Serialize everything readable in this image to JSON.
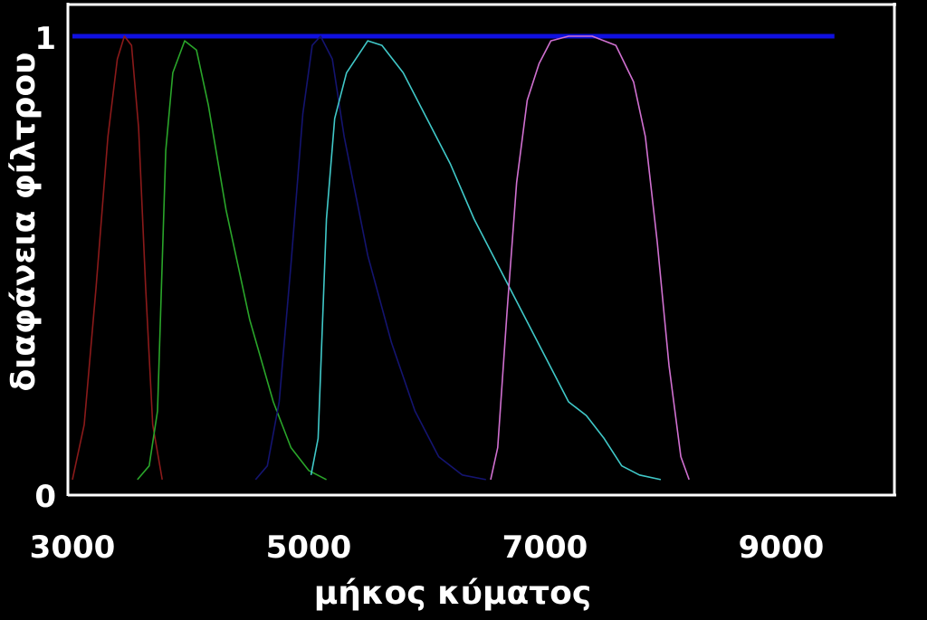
{
  "chart_data": {
    "type": "line",
    "title": "",
    "xlabel": "μήκος κύματος",
    "ylabel": "διαφάνεια φίλτρου",
    "xlim": [
      3000,
      9500
    ],
    "ylim": [
      0,
      1
    ],
    "x_ticks": [
      {
        "value": 3000,
        "label": "3000"
      },
      {
        "value": 5000,
        "label": "5000"
      },
      {
        "value": 7000,
        "label": "7000"
      },
      {
        "value": 9000,
        "label": "9000"
      }
    ],
    "y_ticks": [
      {
        "value": 0,
        "label": "0"
      },
      {
        "value": 1,
        "label": "1"
      }
    ],
    "grid": false,
    "legend": "none",
    "reference_line": {
      "y": 1.0,
      "x_range": [
        3000,
        9450
      ],
      "color": "#1010e0"
    },
    "series": [
      {
        "color": "#8b1a1a",
        "points": [
          [
            3000,
            0.03
          ],
          [
            3100,
            0.15
          ],
          [
            3200,
            0.45
          ],
          [
            3300,
            0.78
          ],
          [
            3380,
            0.95
          ],
          [
            3440,
            1.0
          ],
          [
            3500,
            0.98
          ],
          [
            3560,
            0.8
          ],
          [
            3620,
            0.45
          ],
          [
            3680,
            0.15
          ],
          [
            3760,
            0.03
          ]
        ]
      },
      {
        "color": "#2aa52a",
        "points": [
          [
            3550,
            0.03
          ],
          [
            3650,
            0.06
          ],
          [
            3720,
            0.18
          ],
          [
            3790,
            0.75
          ],
          [
            3850,
            0.92
          ],
          [
            3950,
            0.99
          ],
          [
            4050,
            0.97
          ],
          [
            4150,
            0.85
          ],
          [
            4300,
            0.62
          ],
          [
            4500,
            0.38
          ],
          [
            4700,
            0.2
          ],
          [
            4850,
            0.1
          ],
          [
            5000,
            0.05
          ],
          [
            5150,
            0.03
          ]
        ]
      },
      {
        "color": "#141470",
        "points": [
          [
            4550,
            0.03
          ],
          [
            4650,
            0.06
          ],
          [
            4750,
            0.2
          ],
          [
            4850,
            0.5
          ],
          [
            4950,
            0.83
          ],
          [
            5030,
            0.98
          ],
          [
            5100,
            1.0
          ],
          [
            5200,
            0.95
          ],
          [
            5300,
            0.78
          ],
          [
            5500,
            0.52
          ],
          [
            5700,
            0.33
          ],
          [
            5900,
            0.18
          ],
          [
            6100,
            0.08
          ],
          [
            6300,
            0.04
          ],
          [
            6500,
            0.03
          ]
        ]
      },
      {
        "color": "#40c8c8",
        "points": [
          [
            5020,
            0.04
          ],
          [
            5080,
            0.12
          ],
          [
            5150,
            0.6
          ],
          [
            5220,
            0.82
          ],
          [
            5320,
            0.92
          ],
          [
            5500,
            0.99
          ],
          [
            5620,
            0.98
          ],
          [
            5800,
            0.92
          ],
          [
            6000,
            0.82
          ],
          [
            6200,
            0.72
          ],
          [
            6400,
            0.6
          ],
          [
            6600,
            0.5
          ],
          [
            6800,
            0.4
          ],
          [
            7000,
            0.3
          ],
          [
            7200,
            0.2
          ],
          [
            7350,
            0.17
          ],
          [
            7500,
            0.12
          ],
          [
            7650,
            0.06
          ],
          [
            7800,
            0.04
          ],
          [
            7980,
            0.03
          ]
        ]
      },
      {
        "color": "#d070d0",
        "points": [
          [
            6540,
            0.03
          ],
          [
            6600,
            0.1
          ],
          [
            6680,
            0.4
          ],
          [
            6760,
            0.68
          ],
          [
            6850,
            0.86
          ],
          [
            6950,
            0.94
          ],
          [
            7050,
            0.99
          ],
          [
            7200,
            1.0
          ],
          [
            7400,
            1.0
          ],
          [
            7600,
            0.98
          ],
          [
            7750,
            0.9
          ],
          [
            7850,
            0.78
          ],
          [
            7950,
            0.55
          ],
          [
            8050,
            0.28
          ],
          [
            8150,
            0.08
          ],
          [
            8220,
            0.03
          ]
        ]
      }
    ]
  }
}
